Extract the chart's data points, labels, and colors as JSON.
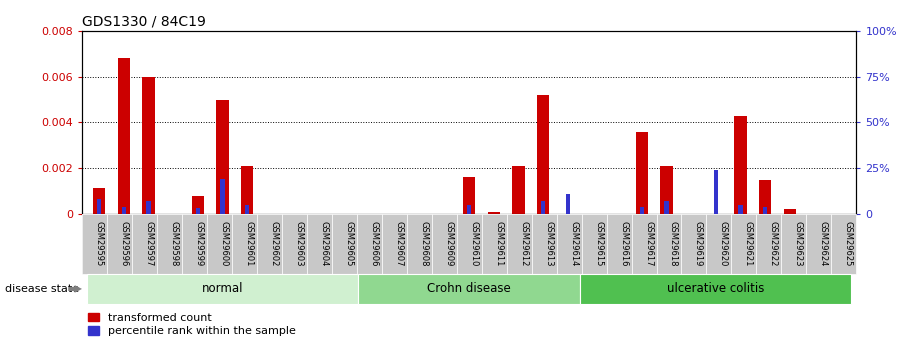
{
  "title": "GDS1330 / 84C19",
  "samples": [
    "GSM29595",
    "GSM29596",
    "GSM29597",
    "GSM29598",
    "GSM29599",
    "GSM29600",
    "GSM29601",
    "GSM29602",
    "GSM29603",
    "GSM29604",
    "GSM29605",
    "GSM29606",
    "GSM29607",
    "GSM29608",
    "GSM29609",
    "GSM29610",
    "GSM29611",
    "GSM29612",
    "GSM29613",
    "GSM29614",
    "GSM29615",
    "GSM29616",
    "GSM29617",
    "GSM29618",
    "GSM29619",
    "GSM29620",
    "GSM29621",
    "GSM29622",
    "GSM29623",
    "GSM29624",
    "GSM29625"
  ],
  "transformed_count": [
    0.00115,
    0.0068,
    0.006,
    0.0,
    0.0008,
    0.005,
    0.0021,
    0.0,
    0.0,
    0.0,
    0.0,
    0.0,
    0.0,
    0.0,
    0.0,
    0.0016,
    0.0001,
    0.0021,
    0.0052,
    0.0,
    0.0,
    0.0,
    0.0036,
    0.0021,
    0.0,
    0.0,
    0.0043,
    0.0015,
    0.0002,
    0.0,
    0.0
  ],
  "percentile_rank": [
    8,
    4,
    7,
    0,
    3,
    19,
    5,
    0,
    0,
    0,
    0,
    0,
    0,
    0,
    0,
    5,
    0,
    0,
    7,
    11,
    0,
    0,
    4,
    7,
    0,
    24,
    5,
    4,
    0,
    0,
    0
  ],
  "group_defs": [
    [
      "normal",
      0,
      10,
      "#d0f0d0"
    ],
    [
      "Crohn disease",
      11,
      19,
      "#90d890"
    ],
    [
      "ulcerative colitis",
      20,
      30,
      "#50c050"
    ]
  ],
  "bar_color_red": "#cc0000",
  "bar_color_blue": "#3333cc",
  "ylim_left": [
    0,
    0.008
  ],
  "ylim_right": [
    0,
    100
  ],
  "yticks_left": [
    0.0,
    0.002,
    0.004,
    0.006,
    0.008
  ],
  "yticks_right": [
    0,
    25,
    50,
    75,
    100
  ],
  "plot_bg": "#ffffff",
  "tick_bg": "#c8c8c8",
  "left_axis_color": "#cc0000",
  "right_axis_color": "#3333cc"
}
